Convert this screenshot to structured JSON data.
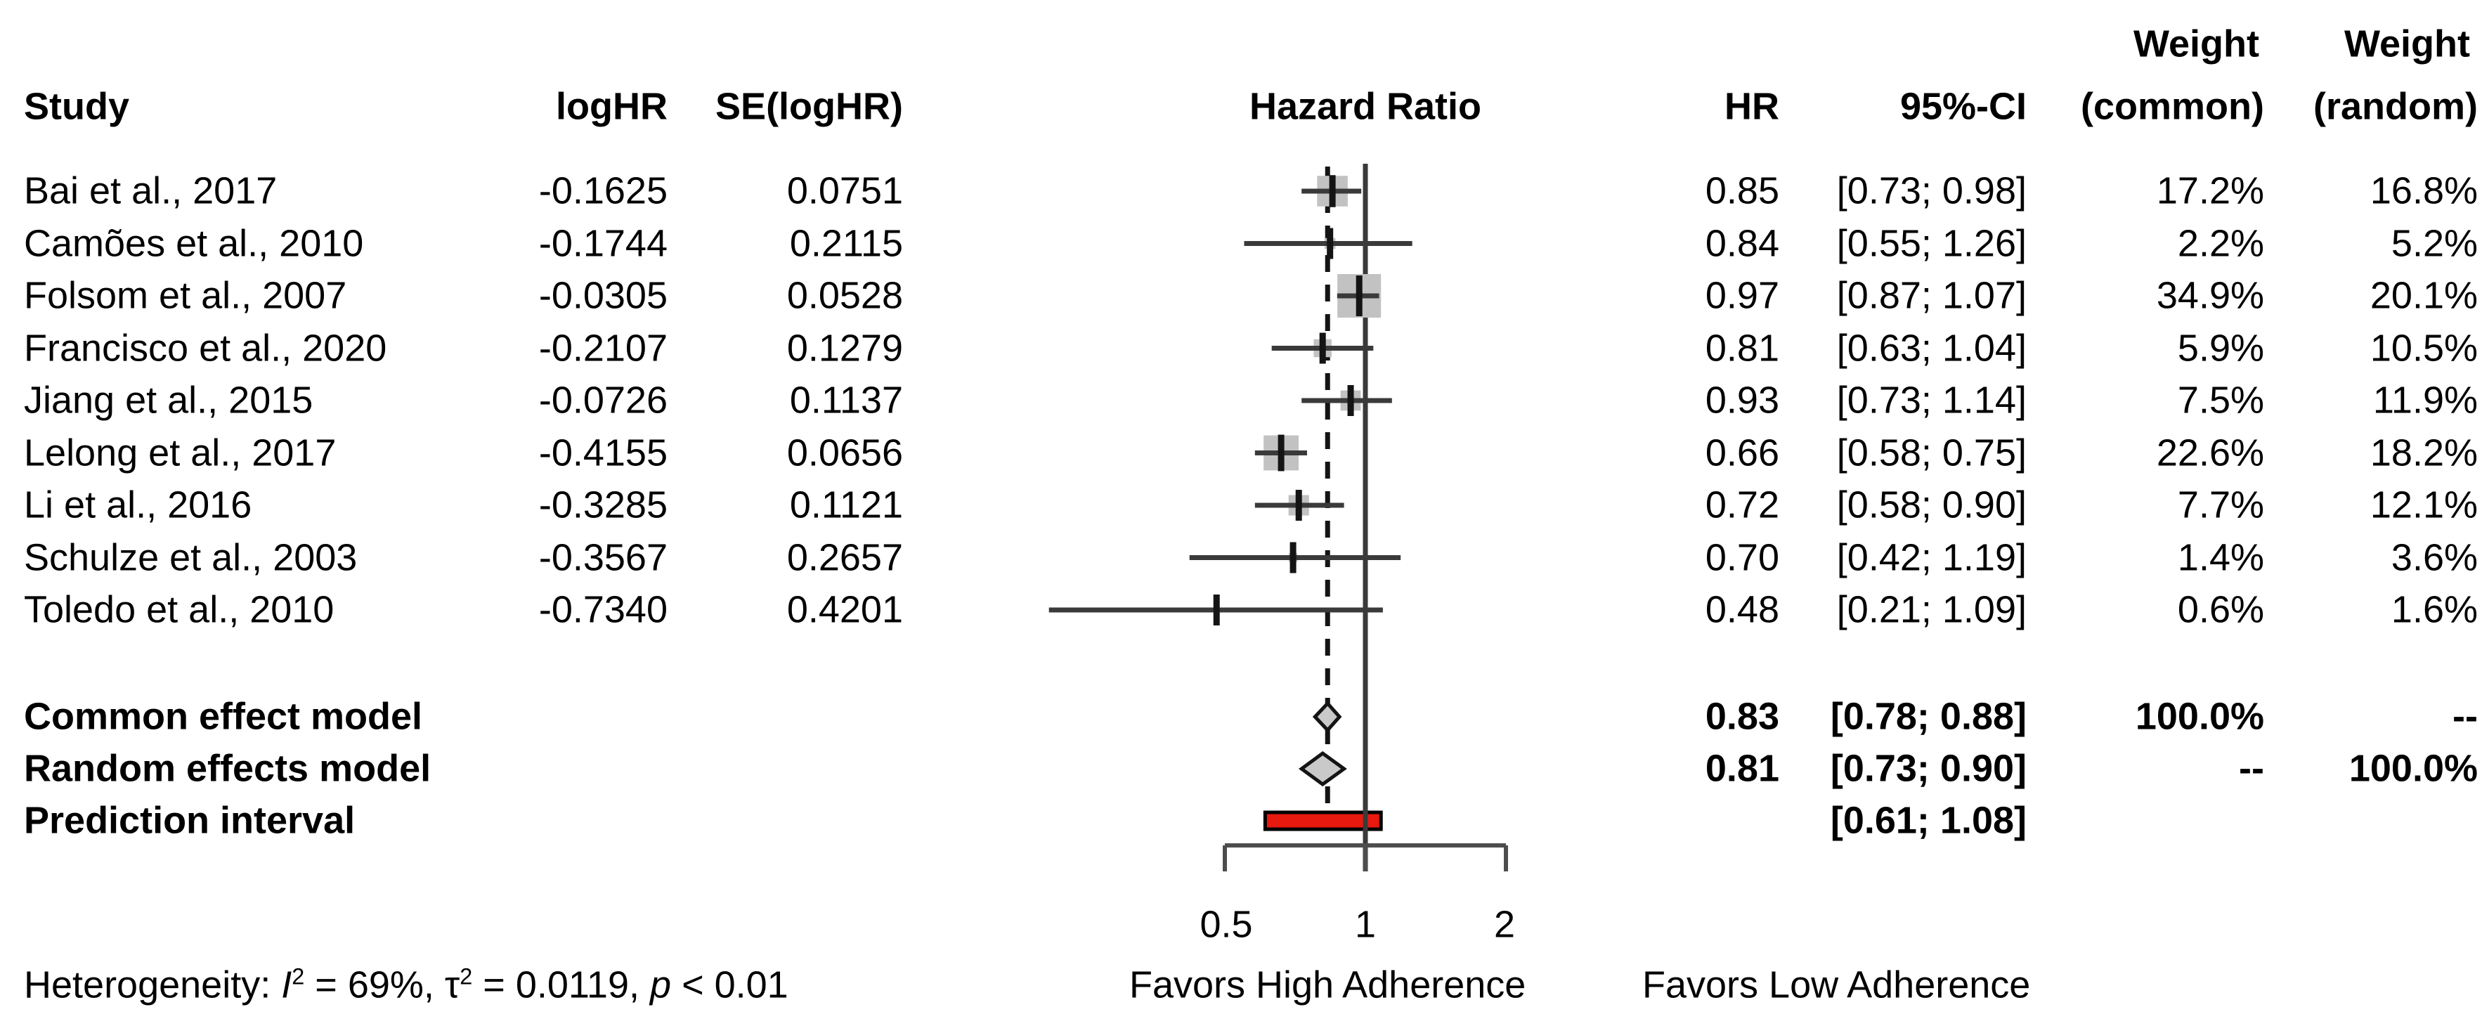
{
  "columns": {
    "study": "Study",
    "loghr": "logHR",
    "se": "SE(logHR)",
    "plot_title": "Hazard Ratio",
    "hr": "HR",
    "ci": "95%-CI",
    "weight_word": "Weight",
    "weight_common_paren": "(common)",
    "weight_random_paren": "(random)"
  },
  "chart_data": {
    "type": "forest",
    "x_scale": "log",
    "xlabel_ticks": [
      "0.5",
      "1",
      "2"
    ],
    "axis_ticks": [
      0.5,
      1,
      2
    ],
    "reference_line": 1.0,
    "dashed_line_at": 0.83,
    "legend_position": "none",
    "grid": false,
    "studies": [
      {
        "study": "Bai et al., 2017",
        "loghr": "-0.1625",
        "se": "0.0751",
        "hr": 0.85,
        "ci_low": 0.73,
        "ci_high": 0.98,
        "hr_text": "0.85",
        "ci_text": "[0.73; 0.98]",
        "w_common": "17.2%",
        "w_random": "16.8%",
        "weight_common_pct": 17.2
      },
      {
        "study": "Camões et al., 2010",
        "loghr": "-0.1744",
        "se": "0.2115",
        "hr": 0.84,
        "ci_low": 0.55,
        "ci_high": 1.26,
        "hr_text": "0.84",
        "ci_text": "[0.55; 1.26]",
        "w_common": "2.2%",
        "w_random": "5.2%",
        "weight_common_pct": 2.2
      },
      {
        "study": "Folsom et al., 2007",
        "loghr": "-0.0305",
        "se": "0.0528",
        "hr": 0.97,
        "ci_low": 0.87,
        "ci_high": 1.07,
        "hr_text": "0.97",
        "ci_text": "[0.87; 1.07]",
        "w_common": "34.9%",
        "w_random": "20.1%",
        "weight_common_pct": 34.9
      },
      {
        "study": "Francisco et al., 2020",
        "loghr": "-0.2107",
        "se": "0.1279",
        "hr": 0.81,
        "ci_low": 0.63,
        "ci_high": 1.04,
        "hr_text": "0.81",
        "ci_text": "[0.63; 1.04]",
        "w_common": "5.9%",
        "w_random": "10.5%",
        "weight_common_pct": 5.9
      },
      {
        "study": "Jiang et al., 2015",
        "loghr": "-0.0726",
        "se": "0.1137",
        "hr": 0.93,
        "ci_low": 0.73,
        "ci_high": 1.14,
        "hr_text": "0.93",
        "ci_text": "[0.73; 1.14]",
        "w_common": "7.5%",
        "w_random": "11.9%",
        "weight_common_pct": 7.5
      },
      {
        "study": "Lelong et al., 2017",
        "loghr": "-0.4155",
        "se": "0.0656",
        "hr": 0.66,
        "ci_low": 0.58,
        "ci_high": 0.75,
        "hr_text": "0.66",
        "ci_text": "[0.58; 0.75]",
        "w_common": "22.6%",
        "w_random": "18.2%",
        "weight_common_pct": 22.6
      },
      {
        "study": "Li et al., 2016",
        "loghr": "-0.3285",
        "se": "0.1121",
        "hr": 0.72,
        "ci_low": 0.58,
        "ci_high": 0.9,
        "hr_text": "0.72",
        "ci_text": "[0.58; 0.90]",
        "w_common": "7.7%",
        "w_random": "12.1%",
        "weight_common_pct": 7.7
      },
      {
        "study": "Schulze et al., 2003",
        "loghr": "-0.3567",
        "se": "0.2657",
        "hr": 0.7,
        "ci_low": 0.42,
        "ci_high": 1.19,
        "hr_text": "0.70",
        "ci_text": "[0.42; 1.19]",
        "w_common": "1.4%",
        "w_random": "3.6%",
        "weight_common_pct": 1.4
      },
      {
        "study": "Toledo et al., 2010",
        "loghr": "-0.7340",
        "se": "0.4201",
        "hr": 0.48,
        "ci_low": 0.21,
        "ci_high": 1.09,
        "hr_text": "0.48",
        "ci_text": "[0.21; 1.09]",
        "w_common": "0.6%",
        "w_random": "1.6%",
        "weight_common_pct": 0.6
      }
    ],
    "summaries": [
      {
        "kind": "diamond",
        "label": "Common effect model",
        "hr": 0.83,
        "ci_low": 0.78,
        "ci_high": 0.88,
        "hr_text": "0.83",
        "ci_text": "[0.78; 0.88]",
        "w_common": "100.0%",
        "w_random": "--"
      },
      {
        "kind": "diamond",
        "label": "Random effects model",
        "hr": 0.81,
        "ci_low": 0.73,
        "ci_high": 0.9,
        "hr_text": "0.81",
        "ci_text": "[0.73; 0.90]",
        "w_common": "--",
        "w_random": "100.0%"
      },
      {
        "kind": "bar",
        "label": "Prediction interval",
        "ci_low": 0.61,
        "ci_high": 1.08,
        "hr_text": "",
        "ci_text": "[0.61; 1.08]",
        "w_common": "",
        "w_random": ""
      }
    ]
  },
  "footer": {
    "heterogeneity": {
      "label": "Heterogeneity:",
      "i_name": "I",
      "sup": "2",
      "i_eq": "= 69%,",
      "tau_name": "τ",
      "tau_eq": "= 0.0119,",
      "p_name": "p",
      "p_eq": "< 0.01"
    },
    "favors_left": "Favors High Adherence",
    "favors_right": "Favors Low Adherence"
  },
  "colors": {
    "text": "#000000",
    "line": "#3a3a3a",
    "tick_mark": "#141414",
    "square_fill": "#c2c2c2",
    "diamond_fill": "#c9c9c9",
    "diamond_stroke": "#141414",
    "prediction_fill": "#e8190f",
    "prediction_stroke": "#000000",
    "axis": "#4d4d4d",
    "dashed": "#141414"
  }
}
